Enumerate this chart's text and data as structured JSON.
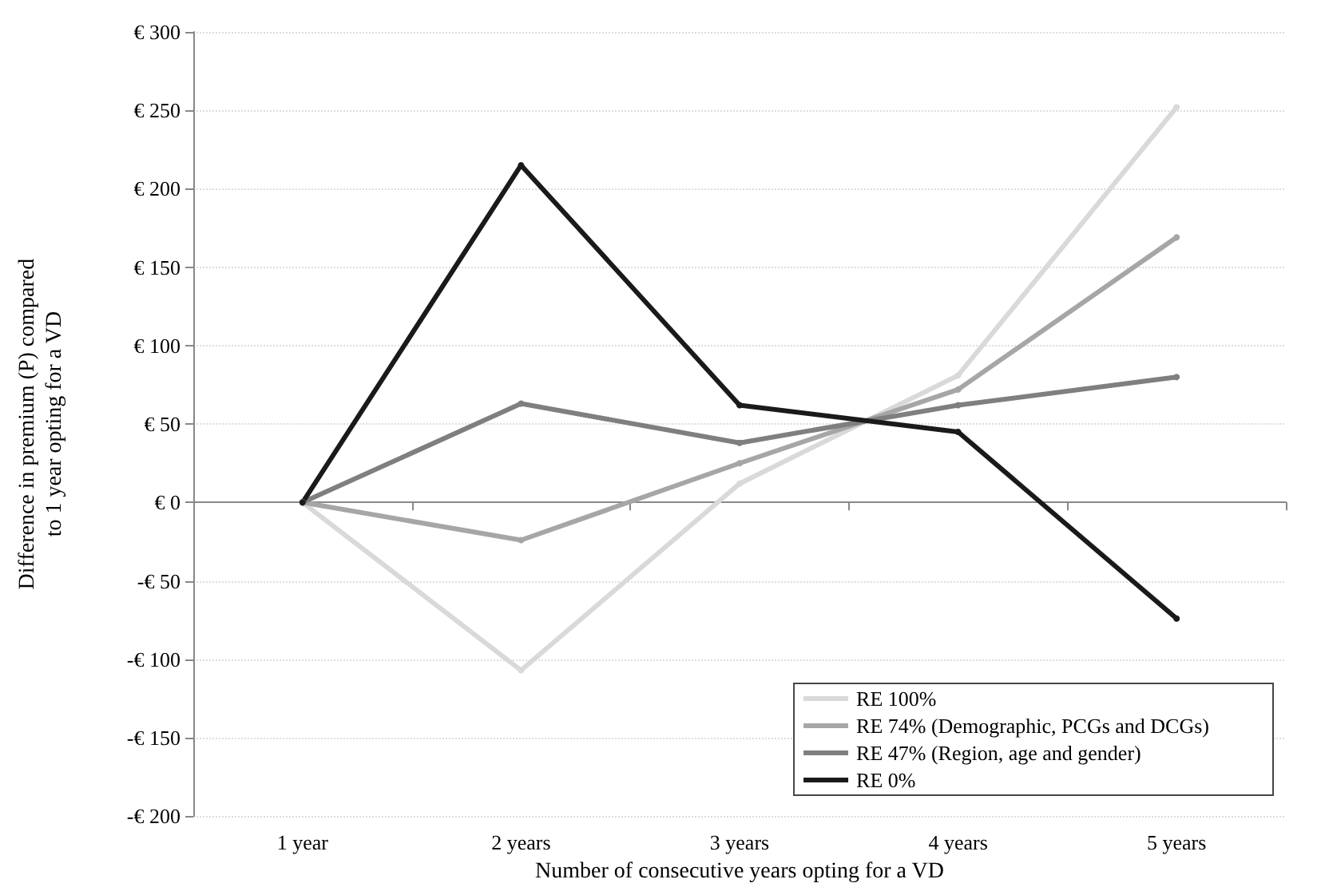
{
  "chart_data": {
    "type": "line",
    "xlabel": "Number of consecutive years opting for a VD",
    "ylabel": "Difference in premium (P) compared\nto 1 year opting for a VD",
    "categories": [
      "1 year",
      "2 years",
      "3 years",
      "4 years",
      "5 years"
    ],
    "series": [
      {
        "name": "RE 100%",
        "color": "#d9d9d9",
        "values": [
          0,
          -107,
          12,
          81,
          252
        ]
      },
      {
        "name": "RE 74% (Demographic, PCGs and DCGs)",
        "color": "#a6a6a6",
        "values": [
          0,
          -24,
          25,
          72,
          169
        ]
      },
      {
        "name": "RE 47% (Region, age and gender)",
        "color": "#7f7f7f",
        "values": [
          0,
          63,
          38,
          62,
          80
        ]
      },
      {
        "name": "RE 0%",
        "color": "#1a1a1a",
        "values": [
          0,
          215,
          62,
          45,
          -74
        ]
      }
    ],
    "ylim": [
      -200,
      300
    ],
    "yticks": [
      {
        "value": -200,
        "label": "-€ 200"
      },
      {
        "value": -150,
        "label": "-€ 150"
      },
      {
        "value": -100,
        "label": "-€ 100"
      },
      {
        "value": -50,
        "label": "-€ 50"
      },
      {
        "value": 0,
        "label": "€ 0"
      },
      {
        "value": 50,
        "label": "€ 50"
      },
      {
        "value": 100,
        "label": "€ 100"
      },
      {
        "value": 150,
        "label": "€ 150"
      },
      {
        "value": 200,
        "label": "€ 200"
      },
      {
        "value": 250,
        "label": "€ 250"
      },
      {
        "value": 300,
        "label": "€ 300"
      }
    ],
    "grid": "y",
    "legend": "bottom right",
    "marker": "circle",
    "line_style": "solid"
  }
}
